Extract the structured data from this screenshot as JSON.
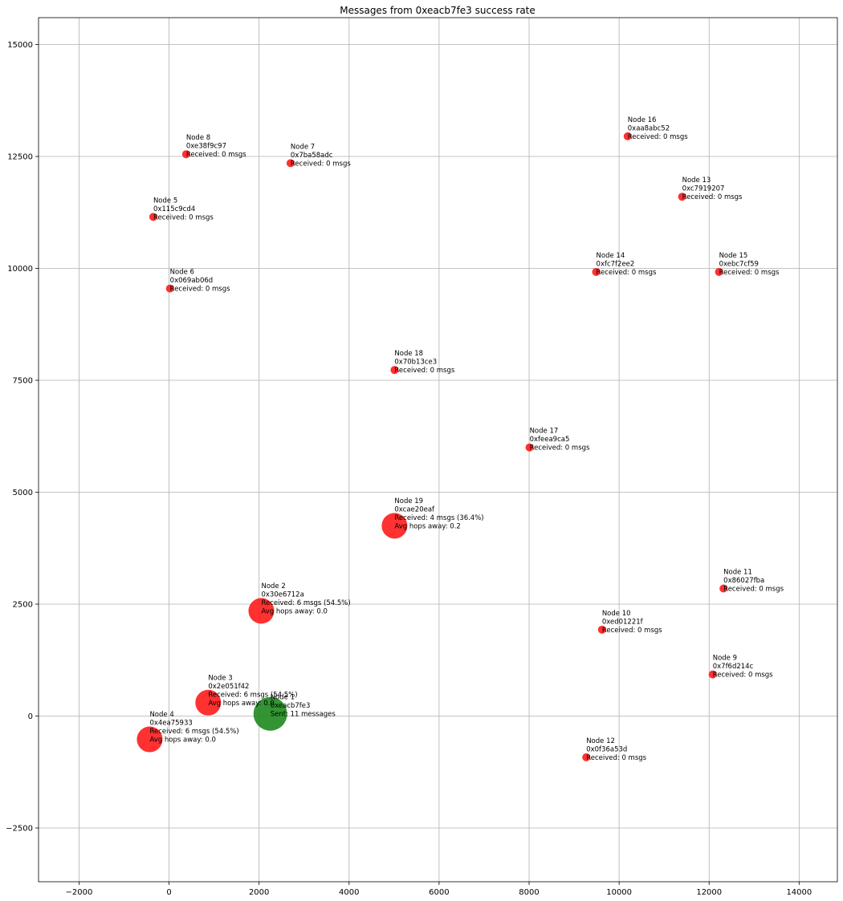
{
  "chart_data": {
    "type": "scatter",
    "title": "Messages from 0xeacb7fe3 success rate",
    "xlabel": "",
    "ylabel": "",
    "xlim": [
      -2900,
      14850
    ],
    "ylim": [
      -3700,
      15600
    ],
    "xticks": [
      -2000,
      0,
      2000,
      4000,
      6000,
      8000,
      10000,
      12000,
      14000
    ],
    "xtick_labels": [
      "−2000",
      "0",
      "2000",
      "4000",
      "6000",
      "8000",
      "10000",
      "12000",
      "14000"
    ],
    "yticks": [
      -2500,
      0,
      2500,
      5000,
      7500,
      10000,
      12500,
      15000
    ],
    "ytick_labels": [
      "−2500",
      "0",
      "2500",
      "5000",
      "7500",
      "10000",
      "12500",
      "15000"
    ],
    "grid": true,
    "colors": {
      "sender": "#228b22",
      "receiver": "#ff2020"
    },
    "points": [
      {
        "x": 2250,
        "y": 50,
        "role": "sender",
        "size": 3,
        "lines": [
          "Node 1",
          "0xeacb7fe3",
          "Sent: 11 messages"
        ]
      },
      {
        "x": 2050,
        "y": 2350,
        "role": "receiver",
        "size": 2,
        "lines": [
          "Node 2",
          "0x30e6712a",
          "Received: 6 msgs (54.5%)",
          "Avg hops away: 0.0"
        ]
      },
      {
        "x": 870,
        "y": 300,
        "role": "receiver",
        "size": 2,
        "lines": [
          "Node 3",
          "0x2e051f42",
          "Received: 6 msgs (54.5%)",
          "Avg hops away: 0.0"
        ]
      },
      {
        "x": -430,
        "y": -520,
        "role": "receiver",
        "size": 2,
        "lines": [
          "Node 4",
          "0x4ea75933",
          "Received: 6 msgs (54.5%)",
          "Avg hops away: 0.0"
        ]
      },
      {
        "x": -350,
        "y": 11150,
        "role": "receiver",
        "size": 1,
        "lines": [
          "Node 5",
          "0x115c9cd4",
          "Received: 0 msgs"
        ]
      },
      {
        "x": 20,
        "y": 9550,
        "role": "receiver",
        "size": 1,
        "lines": [
          "Node 6",
          "0x069ab06d",
          "Received: 0 msgs"
        ]
      },
      {
        "x": 2700,
        "y": 12350,
        "role": "receiver",
        "size": 1,
        "lines": [
          "Node 7",
          "0x7ba58adc",
          "Received: 0 msgs"
        ]
      },
      {
        "x": 380,
        "y": 12550,
        "role": "receiver",
        "size": 1,
        "lines": [
          "Node 8",
          "0xe38f9c97",
          "Received: 0 msgs"
        ]
      },
      {
        "x": 12080,
        "y": 930,
        "role": "receiver",
        "size": 1,
        "lines": [
          "Node 9",
          "0x7f6d214c",
          "Received: 0 msgs"
        ]
      },
      {
        "x": 9620,
        "y": 1930,
        "role": "receiver",
        "size": 1,
        "lines": [
          "Node 10",
          "0xed01221f",
          "Received: 0 msgs"
        ]
      },
      {
        "x": 12320,
        "y": 2850,
        "role": "receiver",
        "size": 1,
        "lines": [
          "Node 11",
          "0x86027fba",
          "Received: 0 msgs"
        ]
      },
      {
        "x": 9270,
        "y": -920,
        "role": "receiver",
        "size": 1,
        "lines": [
          "Node 12",
          "0x0f36a53d",
          "Received: 0 msgs"
        ]
      },
      {
        "x": 11400,
        "y": 11600,
        "role": "receiver",
        "size": 1,
        "lines": [
          "Node 13",
          "0xc7919207",
          "Received: 0 msgs"
        ]
      },
      {
        "x": 9490,
        "y": 9920,
        "role": "receiver",
        "size": 1,
        "lines": [
          "Node 14",
          "0xfc7f2ee2",
          "Received: 0 msgs"
        ]
      },
      {
        "x": 12220,
        "y": 9920,
        "role": "receiver",
        "size": 1,
        "lines": [
          "Node 15",
          "0xebc7cf59",
          "Received: 0 msgs"
        ]
      },
      {
        "x": 10190,
        "y": 12950,
        "role": "receiver",
        "size": 1,
        "lines": [
          "Node 16",
          "0xaa8abc52",
          "Received: 0 msgs"
        ]
      },
      {
        "x": 8010,
        "y": 6000,
        "role": "receiver",
        "size": 1,
        "lines": [
          "Node 17",
          "0xfeea9ca5",
          "Received: 0 msgs"
        ]
      },
      {
        "x": 5010,
        "y": 7730,
        "role": "receiver",
        "size": 1,
        "lines": [
          "Node 18",
          "0x70b13ce3",
          "Received: 0 msgs"
        ]
      },
      {
        "x": 5010,
        "y": 4250,
        "role": "receiver",
        "size": 2,
        "lines": [
          "Node 19",
          "0xcae20eaf",
          "Received: 4 msgs (36.4%)",
          "Avg hops away: 0.2"
        ]
      }
    ]
  }
}
